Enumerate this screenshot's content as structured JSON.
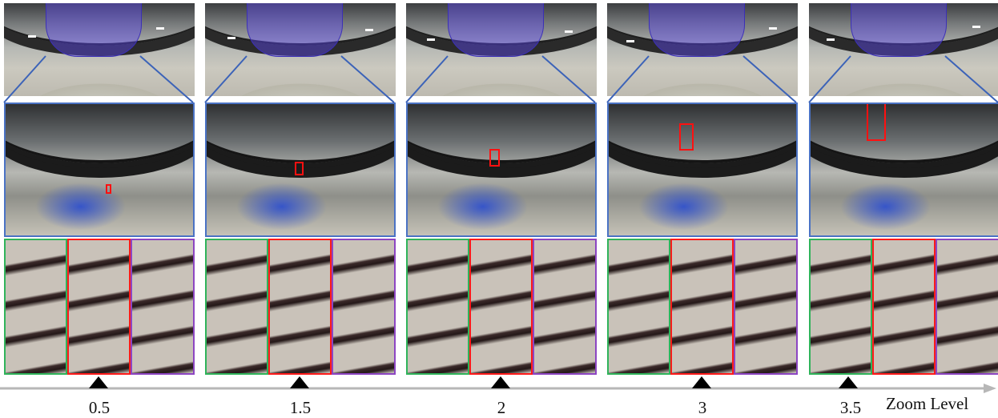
{
  "axis": {
    "title": "Zoom Level",
    "line_color": "#b7b7b7",
    "marker_color": "#000000"
  },
  "columns": [
    {
      "zoom_label": "0.5"
    },
    {
      "zoom_label": "1.5"
    },
    {
      "zoom_label": "2"
    },
    {
      "zoom_label": "3"
    },
    {
      "zoom_label": "3.5"
    }
  ],
  "colors": {
    "region_highlight": "#5a46eb",
    "detail_border": "#4a72c4",
    "selection_box": "#ff1010",
    "left_strip_border": "#2fb35a",
    "center_strip_border": "#ff1a1a",
    "right_strip_border": "#8c45c2"
  }
}
